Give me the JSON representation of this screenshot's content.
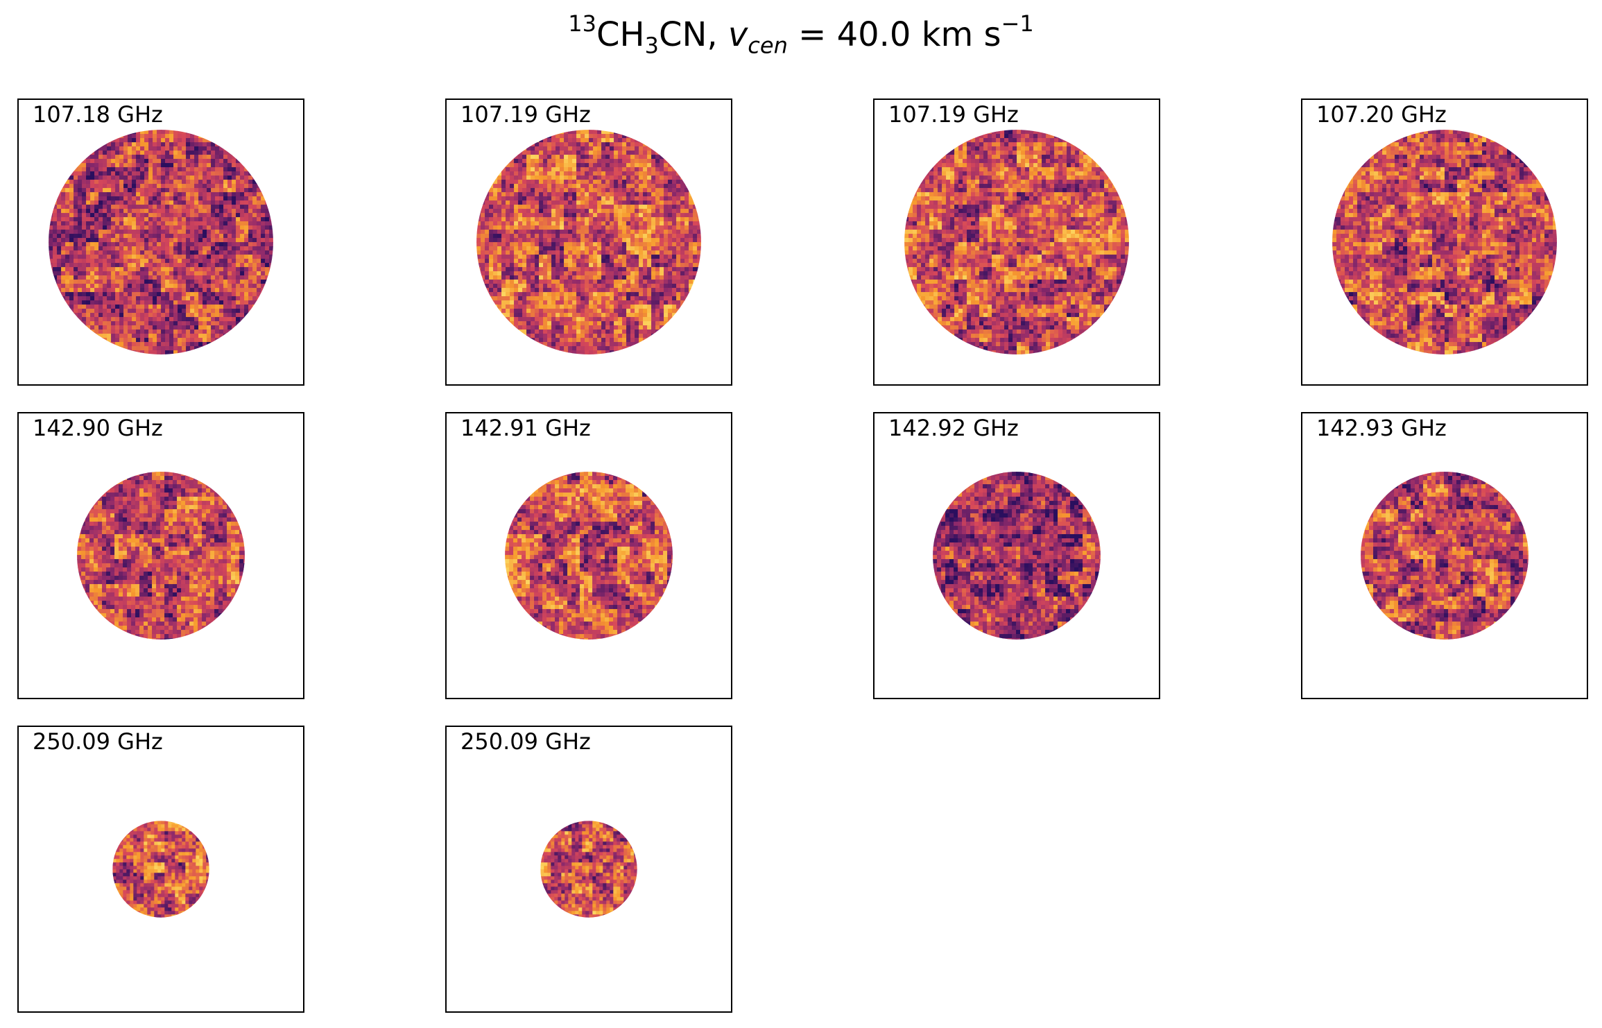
{
  "title": {
    "isotope": "13",
    "pre": "CH",
    "sub": "3",
    "post": "CN, ",
    "var": "v",
    "var_sub": "cen",
    "value": " =  40.0 km s",
    "exp": "−1"
  },
  "chart_data": {
    "type": "heatmap",
    "colormap": "inferno",
    "colors": {
      "dark": "#2a0f5e",
      "mid": "#8f2a6b",
      "warm": "#d6475a",
      "hot": "#f79a2e",
      "bright": "#fcd660"
    },
    "panels": [
      {
        "label": "107.18 GHz",
        "beam_radius_frac": 0.395,
        "mean_level": 0.4
      },
      {
        "label": "107.19 GHz",
        "beam_radius_frac": 0.395,
        "mean_level": 0.52
      },
      {
        "label": "107.19 GHz",
        "beam_radius_frac": 0.395,
        "mean_level": 0.5
      },
      {
        "label": "107.20 GHz",
        "beam_radius_frac": 0.395,
        "mean_level": 0.48
      },
      {
        "label": "142.90 GHz",
        "beam_radius_frac": 0.295,
        "mean_level": 0.48
      },
      {
        "label": "142.91 GHz",
        "beam_radius_frac": 0.295,
        "mean_level": 0.5
      },
      {
        "label": "142.92 GHz",
        "beam_radius_frac": 0.295,
        "mean_level": 0.34
      },
      {
        "label": "142.93 GHz",
        "beam_radius_frac": 0.295,
        "mean_level": 0.46
      },
      {
        "label": "250.09 GHz",
        "beam_radius_frac": 0.17,
        "mean_level": 0.5
      },
      {
        "label": "250.09 GHz",
        "beam_radius_frac": 0.17,
        "mean_level": 0.52
      }
    ]
  }
}
